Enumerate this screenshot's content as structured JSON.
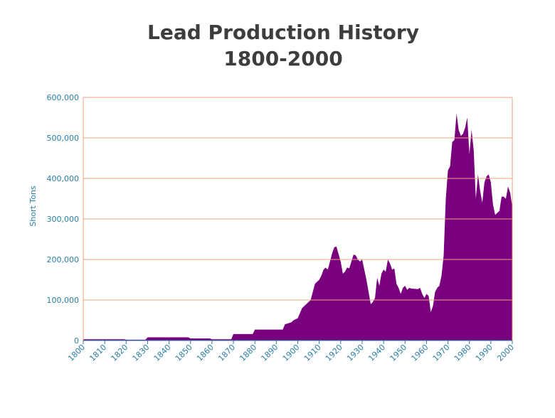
{
  "chart_data": {
    "type": "area",
    "title": "Lead Production History",
    "subtitle": "1800-2000",
    "ylabel": "Short Tons",
    "color": "#7a017e",
    "grid": true,
    "x": [
      1800,
      1819,
      1820,
      1829,
      1830,
      1849,
      1850,
      1859,
      1860,
      1869,
      1870,
      1879,
      1880,
      1893,
      1894,
      1897,
      1898,
      1900,
      1902,
      1904,
      1906,
      1907,
      1908,
      1910,
      1911,
      1912,
      1913,
      1914,
      1916,
      1917,
      1918,
      1920,
      1921,
      1922,
      1923,
      1924,
      1925,
      1926,
      1927,
      1928,
      1929,
      1930,
      1932,
      1934,
      1935,
      1936,
      1937,
      1938,
      1939,
      1940,
      1941,
      1942,
      1943,
      1944,
      1945,
      1946,
      1947,
      1948,
      1949,
      1950,
      1951,
      1952,
      1953,
      1956,
      1957,
      1958,
      1959,
      1960,
      1961,
      1962,
      1963,
      1964,
      1965,
      1966,
      1967,
      1968,
      1969,
      1970,
      1971,
      1972,
      1973,
      1974,
      1975,
      1976,
      1977,
      1978,
      1979,
      1980,
      1981,
      1982,
      1983,
      1984,
      1985,
      1986,
      1987,
      1988,
      1989,
      1990,
      1991,
      1992,
      1993,
      1994,
      1995,
      1996,
      1997,
      1998,
      1999,
      2000
    ],
    "values": [
      3000,
      3000,
      2000,
      2000,
      8000,
      8000,
      5000,
      5000,
      3000,
      3000,
      16000,
      16000,
      27000,
      27000,
      40000,
      45000,
      50000,
      55000,
      80000,
      90000,
      100000,
      120000,
      140000,
      150000,
      160000,
      175000,
      180000,
      175000,
      215000,
      230000,
      232000,
      195000,
      165000,
      170000,
      180000,
      178000,
      195000,
      212000,
      210000,
      200000,
      195000,
      200000,
      150000,
      90000,
      95000,
      105000,
      155000,
      135000,
      165000,
      175000,
      170000,
      200000,
      190000,
      175000,
      178000,
      140000,
      130000,
      115000,
      130000,
      135000,
      125000,
      130000,
      128000,
      127000,
      130000,
      115000,
      105000,
      115000,
      110000,
      70000,
      85000,
      120000,
      130000,
      135000,
      160000,
      210000,
      350000,
      420000,
      430000,
      490000,
      495000,
      560000,
      520000,
      505000,
      510000,
      525000,
      550000,
      460000,
      520000,
      470000,
      350000,
      410000,
      370000,
      340000,
      390000,
      405000,
      410000,
      390000,
      335000,
      310000,
      315000,
      320000,
      355000,
      355000,
      350000,
      380000,
      365000,
      330000
    ],
    "xlim": [
      1800,
      2000
    ],
    "xticks": [
      1800,
      1810,
      1820,
      1830,
      1840,
      1850,
      1860,
      1870,
      1880,
      1890,
      1900,
      1910,
      1920,
      1930,
      1940,
      1950,
      1960,
      1970,
      1980,
      1990,
      2000
    ],
    "ylim": [
      0,
      600000
    ],
    "yticks": [
      0,
      {
        "value": 100000,
        "label": "100,000"
      },
      {
        "value": 200000,
        "label": "200,000"
      },
      {
        "value": 300000,
        "label": "300,000"
      },
      {
        "value": 400000,
        "label": "400,000"
      },
      {
        "value": 500000,
        "label": "500,000"
      },
      {
        "value": 600000,
        "label": "600,000"
      }
    ]
  }
}
